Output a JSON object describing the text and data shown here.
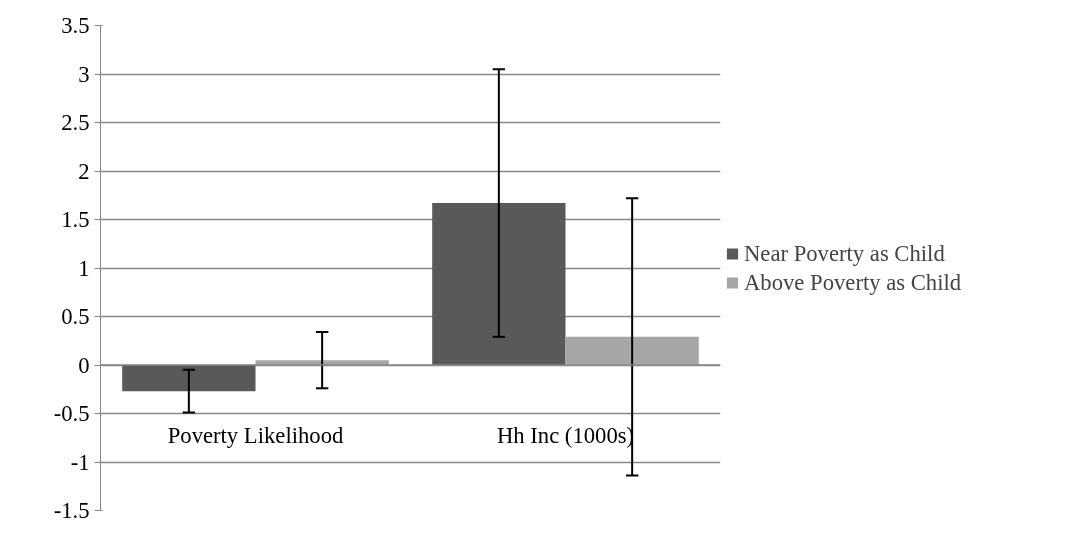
{
  "chart_data": {
    "type": "bar",
    "categories": [
      "Poverty Likelihood",
      "Hh Inc (1000s)"
    ],
    "series": [
      {
        "name": "Near Poverty as Child",
        "color": "#595959",
        "values": [
          -0.27,
          1.67
        ],
        "errors": [
          0.22,
          1.38
        ]
      },
      {
        "name": "Above Poverty as Child",
        "color": "#a6a6a6",
        "values": [
          0.05,
          0.29
        ],
        "errors": [
          0.29,
          1.43
        ]
      }
    ],
    "ylim": [
      -1.5,
      3.5
    ],
    "yticks": [
      -1.5,
      -1,
      -0.5,
      0,
      0.5,
      1,
      1.5,
      2,
      2.5,
      3,
      3.5
    ],
    "grid": "y",
    "legend": "right"
  }
}
